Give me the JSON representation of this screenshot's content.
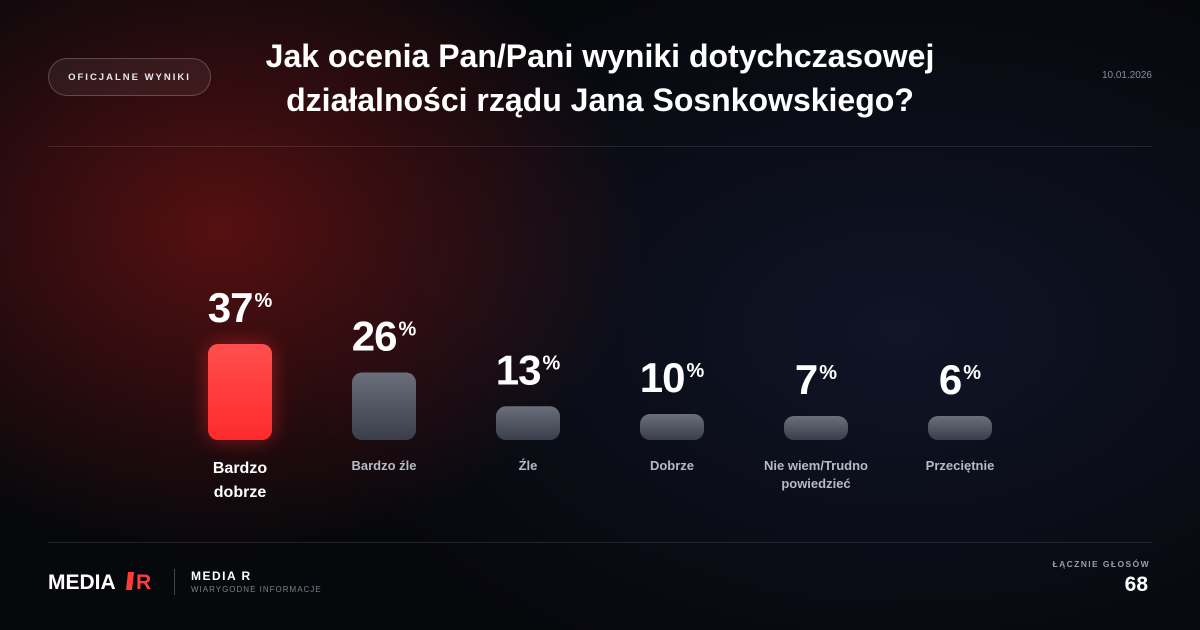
{
  "header": {
    "badge": "OFICJALNE WYNIKI",
    "title_line1": "Jak ocenia Pan/Pani wyniki dotychczasowej",
    "title_line2": "działalności rządu Jana Sosnkowskiego?",
    "date": "10.01.2026"
  },
  "chart_data": {
    "type": "bar",
    "categories": [
      [
        "Bardzo",
        "dobrze"
      ],
      [
        "Bardzo źle"
      ],
      [
        "Źle"
      ],
      [
        "Dobrze"
      ],
      [
        "Nie wiem/Trudno",
        "powiedzieć"
      ],
      [
        "Przeciętnie"
      ]
    ],
    "values": [
      37,
      26,
      13,
      10,
      7,
      6
    ],
    "unit": "%",
    "highlight_index": 0,
    "colors": {
      "highlight_top": "#ff4f4f",
      "highlight_bottom": "#ff2a2a",
      "bar_top": "#6b6f7c",
      "bar_bottom": "#3a3e4b",
      "label_highlight": "#ffffff",
      "label_normal": "#b7bac3"
    }
  },
  "footer": {
    "logo_text_left": "MEDIA",
    "logo_text_right": "R",
    "brand_name": "MEDIA R",
    "brand_tagline": "WIARYGODNE INFORMACJE",
    "total_votes_label": "ŁĄCZNIE GŁOSÓW",
    "total_votes_value": "68"
  }
}
